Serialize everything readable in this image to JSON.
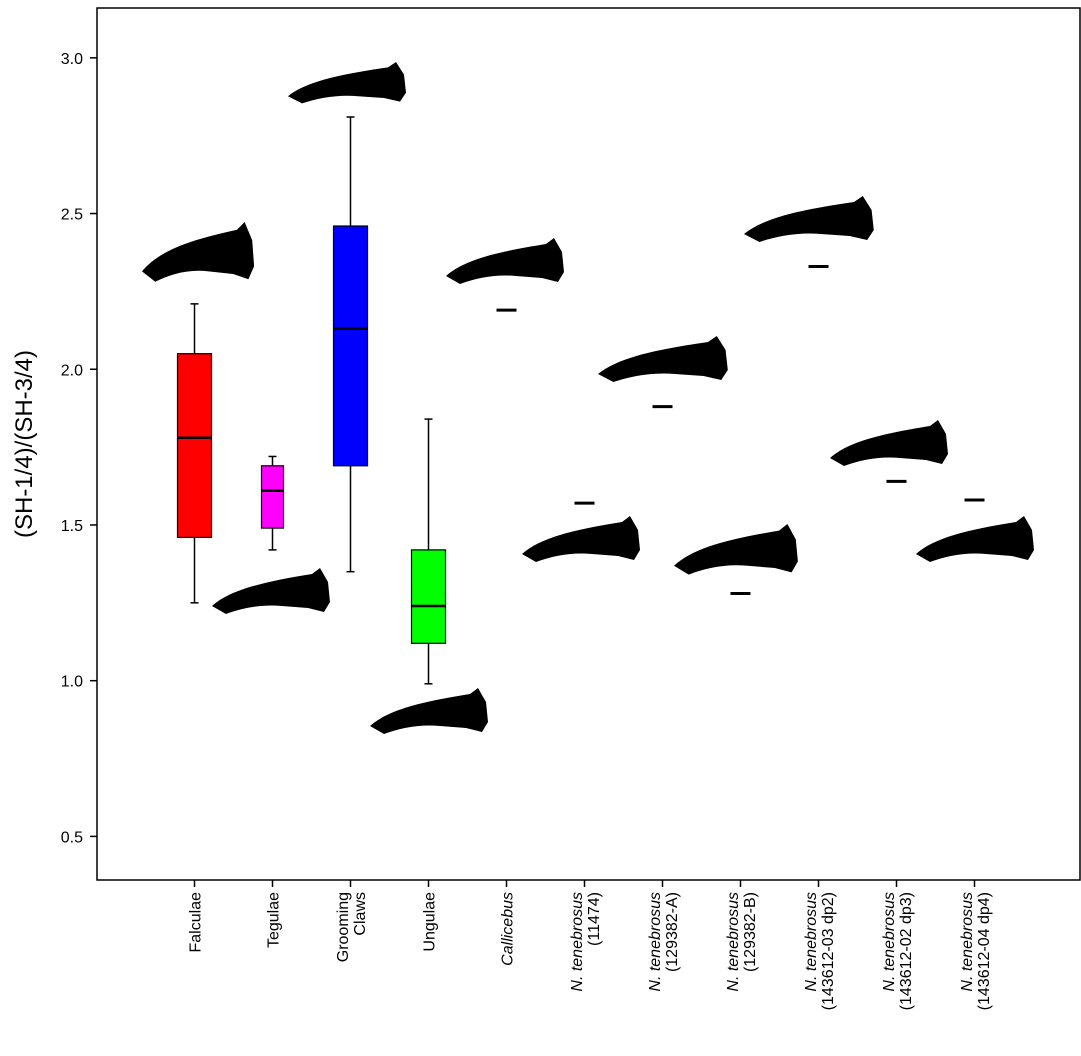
{
  "chart_data": {
    "type": "box",
    "y_label": "(SH-1/4)/(SH-3/4)",
    "categories": [
      [
        "Falculae"
      ],
      [
        "Tegulae"
      ],
      [
        "Grooming",
        "Claws"
      ],
      [
        "Ungulae"
      ],
      [
        "Callicebus"
      ],
      [
        "N. tenebrosus",
        "(11474)"
      ],
      [
        "N. tenebrosus",
        "(129382-A)"
      ],
      [
        "N. tenebrosus",
        "(129382-B)"
      ],
      [
        "N. tenebrosus",
        "(143612-03 dp2)"
      ],
      [
        "N. tenebrosus",
        "(143612-02 dp3)"
      ],
      [
        "N. tenebrosus",
        "(143612-04 dp4)"
      ]
    ],
    "boxes": [
      {
        "min": 1.25,
        "q1": 1.46,
        "median": 1.78,
        "q3": 2.05,
        "max": 2.21,
        "color": "#ff0000"
      },
      {
        "min": 1.42,
        "q1": 1.49,
        "median": 1.61,
        "q3": 1.69,
        "max": 1.72,
        "color": "#ff00ff"
      },
      {
        "min": 1.35,
        "q1": 1.69,
        "median": 2.13,
        "q3": 2.46,
        "max": 2.81,
        "color": "#0000ff"
      },
      {
        "min": 0.99,
        "q1": 1.12,
        "median": 1.24,
        "q3": 1.42,
        "max": 1.84,
        "color": "#00ff00"
      },
      null,
      null,
      null,
      null,
      null,
      null,
      null
    ],
    "points": [
      null,
      null,
      null,
      null,
      2.19,
      1.57,
      1.88,
      1.28,
      2.33,
      1.64,
      1.58
    ],
    "ylim": [
      0.36,
      3.16
    ],
    "yticks": [
      0.5,
      {
        "value": 1,
        "label": "1.0"
      },
      1.5,
      {
        "value": 2,
        "label": "2.0"
      },
      2.5,
      {
        "value": 3,
        "label": "3.0"
      }
    ]
  }
}
